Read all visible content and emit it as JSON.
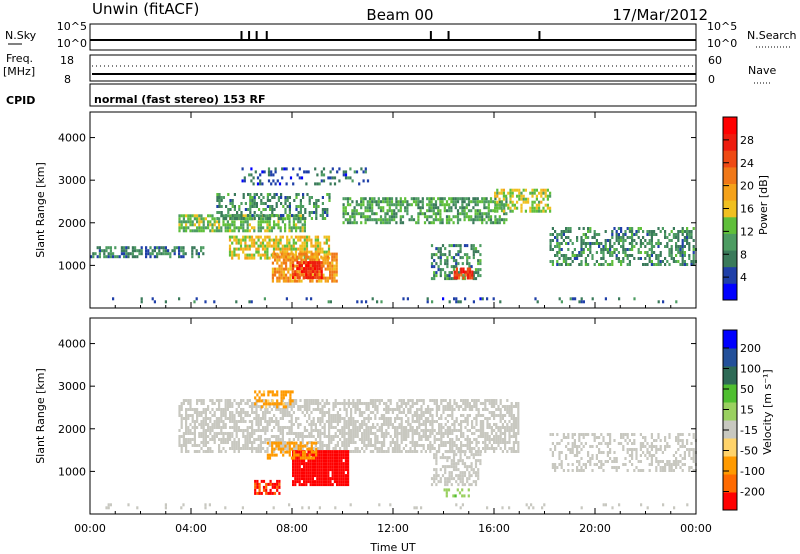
{
  "header": {
    "station": "Unwin (fitACF)",
    "beam": "Beam 00",
    "date": "17/Mar/2012"
  },
  "top_panels": {
    "nsky_label": "N.Sky",
    "nsearch_label": "N.Search",
    "noise_ticks_left": [
      "10^5",
      "10^0"
    ],
    "noise_ticks_right": [
      "10^5",
      "10^0"
    ],
    "freq_label": "Freq.",
    "freq_unit": "[MHz]",
    "freq_ticks": [
      "18",
      "8"
    ],
    "nave_label": "Nave",
    "nave_ticks": [
      "60",
      "0"
    ],
    "cpid_label": "CPID",
    "cpid_text": "normal (fast stereo) 153 RF"
  },
  "colors": {
    "power": [
      "#0000ff",
      "#1f3fa8",
      "#3a7a5a",
      "#4d9c62",
      "#5fbf3a",
      "#f0c020",
      "#f5a21a",
      "#f07818",
      "#ef4a14",
      "#ee1c0e",
      "#ff0000"
    ],
    "velocity": [
      "#ff0000",
      "#ff6a00",
      "#ff9a00",
      "#ffd36a",
      "#c8c8c0",
      "#9ad060",
      "#4fbf30",
      "#2e6a56",
      "#23509a",
      "#0000ff"
    ]
  },
  "chart_data": [
    {
      "type": "heatmap",
      "panel": "power",
      "ylabel": "Slant Range [km]",
      "xlabel": "",
      "x_ticks": [
        "00:00",
        "04:00",
        "08:00",
        "12:00",
        "16:00",
        "20:00",
        "00:00"
      ],
      "y_ticks": [
        1000,
        2000,
        3000,
        4000
      ],
      "ylim": [
        0,
        4600
      ],
      "xlim": [
        0,
        24
      ],
      "colorbar": {
        "label": "Power [dB]",
        "range": [
          0,
          32
        ],
        "ticks": [
          4,
          8,
          12,
          16,
          20,
          24,
          28
        ]
      },
      "echo_regions": [
        {
          "t0": 0.0,
          "t1": 24.0,
          "r0": 150,
          "r1": 250,
          "level": 5,
          "density": 0.12
        },
        {
          "t0": 0.0,
          "t1": 4.5,
          "r0": 1200,
          "r1": 1450,
          "level": 7,
          "density": 0.55
        },
        {
          "t0": 3.5,
          "t1": 8.5,
          "r0": 1800,
          "r1": 2200,
          "level": 12,
          "density": 0.7
        },
        {
          "t0": 5.5,
          "t1": 9.5,
          "r0": 1200,
          "r1": 1700,
          "level": 16,
          "density": 0.7
        },
        {
          "t0": 7.2,
          "t1": 9.8,
          "r0": 600,
          "r1": 1300,
          "level": 20,
          "density": 0.8
        },
        {
          "t0": 8.0,
          "t1": 9.2,
          "r0": 700,
          "r1": 1100,
          "level": 27,
          "density": 0.85
        },
        {
          "t0": 5.0,
          "t1": 9.5,
          "r0": 2100,
          "r1": 2700,
          "level": 8,
          "density": 0.45
        },
        {
          "t0": 10.0,
          "t1": 16.5,
          "r0": 2000,
          "r1": 2600,
          "level": 10,
          "density": 0.6
        },
        {
          "t0": 13.5,
          "t1": 15.5,
          "r0": 700,
          "r1": 1500,
          "level": 8,
          "density": 0.5
        },
        {
          "t0": 14.4,
          "t1": 15.1,
          "r0": 700,
          "r1": 950,
          "level": 27,
          "density": 0.85
        },
        {
          "t0": 16.0,
          "t1": 18.2,
          "r0": 2300,
          "r1": 2800,
          "level": 14,
          "density": 0.6
        },
        {
          "t0": 18.2,
          "t1": 24.0,
          "r0": 1000,
          "r1": 1900,
          "level": 8,
          "density": 0.45
        },
        {
          "t0": 6.0,
          "t1": 11.0,
          "r0": 2900,
          "r1": 3300,
          "level": 5,
          "density": 0.25
        }
      ]
    },
    {
      "type": "heatmap",
      "panel": "velocity",
      "ylabel": "Slant Range [km]",
      "xlabel": "Time UT",
      "x_ticks": [
        "00:00",
        "04:00",
        "08:00",
        "12:00",
        "16:00",
        "20:00",
        "00:00"
      ],
      "y_ticks": [
        1000,
        2000,
        3000,
        4000
      ],
      "ylim": [
        0,
        4600
      ],
      "xlim": [
        0,
        24
      ],
      "colorbar": {
        "label": "Velocity [m s⁻¹]",
        "range": [
          -250,
          250
        ],
        "ticks": [
          "200",
          "100",
          "50",
          "15",
          "-15",
          "-50",
          "-100",
          "-200"
        ]
      },
      "echo_regions": [
        {
          "t0": 0.0,
          "t1": 24.0,
          "r0": 150,
          "r1": 250,
          "v": 0,
          "density": 0.12
        },
        {
          "t0": 3.5,
          "t1": 17.0,
          "r0": 1500,
          "r1": 2700,
          "v": 0,
          "density": 0.6
        },
        {
          "t0": 18.2,
          "t1": 24.0,
          "r0": 1000,
          "r1": 1900,
          "v": 0,
          "density": 0.4
        },
        {
          "t0": 13.5,
          "t1": 15.5,
          "r0": 700,
          "r1": 1500,
          "v": 0,
          "density": 0.5
        },
        {
          "t0": 8.0,
          "t1": 10.2,
          "r0": 700,
          "r1": 1500,
          "v": -250,
          "density": 0.95
        },
        {
          "t0": 6.5,
          "t1": 7.5,
          "r0": 500,
          "r1": 800,
          "v": -200,
          "density": 0.7
        },
        {
          "t0": 6.5,
          "t1": 8.0,
          "r0": 2500,
          "r1": 2900,
          "v": -60,
          "density": 0.5
        },
        {
          "t0": 7.0,
          "t1": 9.0,
          "r0": 1300,
          "r1": 1700,
          "v": -80,
          "density": 0.6
        },
        {
          "t0": 14.0,
          "t1": 15.0,
          "r0": 400,
          "r1": 600,
          "v": 40,
          "density": 0.5
        }
      ]
    }
  ]
}
